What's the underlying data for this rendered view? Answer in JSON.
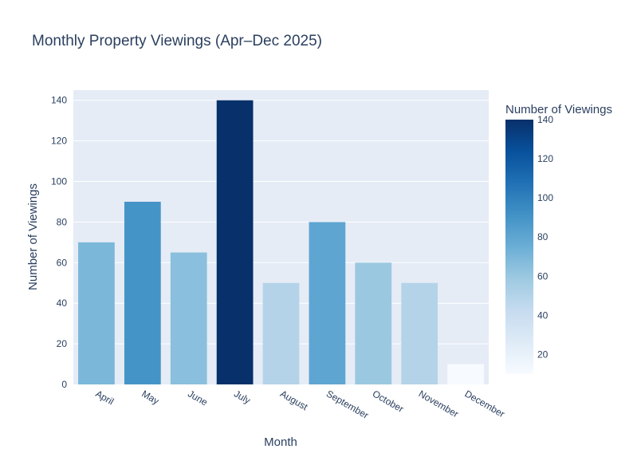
{
  "chart_data": {
    "type": "bar",
    "title": "Monthly Property Viewings (Apr–Dec 2025)",
    "xlabel": "Month",
    "ylabel": "Number of Viewings",
    "categories": [
      "April",
      "May",
      "June",
      "July",
      "August",
      "September",
      "October",
      "November",
      "December"
    ],
    "values": [
      70,
      90,
      65,
      140,
      50,
      80,
      60,
      50,
      10
    ],
    "ylim": [
      0,
      145
    ],
    "yticks": [
      0,
      20,
      40,
      60,
      80,
      100,
      120,
      140
    ],
    "grid": true,
    "colorbar": {
      "title": "Number of Viewings",
      "range": [
        10,
        140
      ],
      "ticks": [
        20,
        40,
        60,
        80,
        100,
        120,
        140
      ],
      "colorscale": "Blues"
    },
    "colors": {
      "plot_bg": "#e5ecf6",
      "grid": "#ffffff",
      "text": "#2a3f5f"
    }
  }
}
